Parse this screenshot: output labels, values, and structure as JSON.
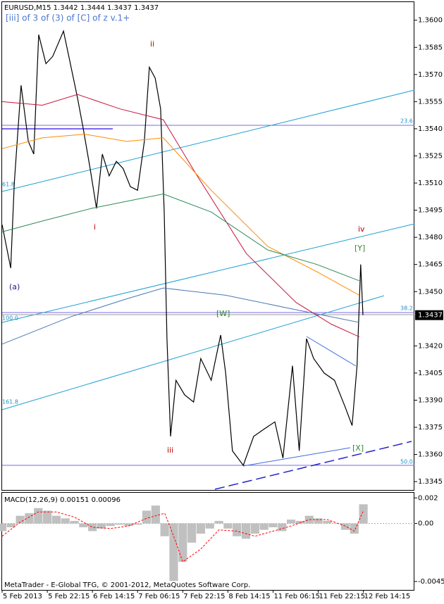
{
  "chart_data": [
    {
      "type": "line",
      "title": "EURUSD,M15  1.3442 1.3444 1.3437 1.3437",
      "subtitle": "[iii] of 3 of (3) of [C] of z v.1+",
      "current_price": 1.3437,
      "grid": false,
      "xlim": [
        0,
        9.13
      ],
      "ylim": [
        1.334,
        1.361
      ],
      "yticks": [
        {
          "value": 1.36,
          "label": "1.3600"
        },
        {
          "value": 1.3585,
          "label": "1.3585"
        },
        {
          "value": 1.357,
          "label": "1.3570"
        },
        {
          "value": 1.3555,
          "label": "1.3555"
        },
        {
          "value": 1.354,
          "label": "1.3540"
        },
        {
          "value": 1.3525,
          "label": "1.3525"
        },
        {
          "value": 1.351,
          "label": "1.3510"
        },
        {
          "value": 1.3495,
          "label": "1.3495"
        },
        {
          "value": 1.348,
          "label": "1.3480"
        },
        {
          "value": 1.3465,
          "label": "1.3465"
        },
        {
          "value": 1.345,
          "label": "1.3450"
        },
        {
          "value": 1.342,
          "label": "1.3420"
        },
        {
          "value": 1.3405,
          "label": "1.3405"
        },
        {
          "value": 1.339,
          "label": "1.3390"
        },
        {
          "value": 1.3375,
          "label": "1.3375"
        },
        {
          "value": 1.336,
          "label": "1.3360"
        },
        {
          "value": 1.3345,
          "label": "1.3345"
        }
      ],
      "annotations": [
        "ii",
        "i",
        "iii",
        "iv",
        "[Y]",
        "[W]",
        "[X]",
        "(a)",
        "23.6",
        "38.2",
        "50.0",
        "61.8",
        "100.0",
        "161.8"
      ],
      "series": [
        {
          "color": "#000000",
          "x": [
            0,
            0.19,
            0.27,
            0.42,
            0.58,
            0.7,
            0.81,
            0.97,
            1.12,
            1.36,
            1.51,
            1.67,
            1.79,
            1.95,
            2.09,
            2.22,
            2.37,
            2.53,
            2.68,
            2.84,
            3.0,
            3.15,
            3.26,
            3.39,
            3.51,
            3.59,
            3.65,
            3.73,
            3.85,
            4.04,
            4.24,
            4.4,
            4.63,
            4.84,
            4.95,
            5.1,
            5.34,
            5.57,
            5.8,
            6.04,
            6.22,
            6.43,
            6.58,
            6.74,
            6.9,
            7.13,
            7.36,
            7.6,
            7.75,
            7.86,
            7.94,
            7.99
          ],
          "values": [
            1.3487,
            1.3463,
            1.351,
            1.3564,
            1.3533,
            1.3526,
            1.3592,
            1.3576,
            1.358,
            1.3594,
            1.3576,
            1.3557,
            1.3541,
            1.3518,
            1.3496,
            1.3526,
            1.3514,
            1.3522,
            1.3518,
            1.3508,
            1.3506,
            1.3533,
            1.3574,
            1.3568,
            1.3551,
            1.3494,
            1.3424,
            1.337,
            1.3401,
            1.3393,
            1.3389,
            1.3413,
            1.3401,
            1.3426,
            1.3405,
            1.3362,
            1.3354,
            1.337,
            1.3374,
            1.3378,
            1.3358,
            1.3409,
            1.3362,
            1.3424,
            1.3413,
            1.3405,
            1.3401,
            1.3386,
            1.3376,
            1.3409,
            1.3465,
            1.3437
          ]
        },
        {
          "color": "#c8143c",
          "x": [
            0,
            0.89,
            1.67,
            2.61,
            3.57,
            4.32,
            5.41,
            6.51,
            7.29,
            7.91
          ],
          "values": [
            1.3555,
            1.3553,
            1.3559,
            1.3551,
            1.3545,
            1.3514,
            1.3471,
            1.3444,
            1.3432,
            1.3425
          ]
        },
        {
          "color": "#ff8c00",
          "x": [
            0,
            0.89,
            1.83,
            2.76,
            3.57,
            4.63,
            5.88,
            6.97,
            7.91
          ],
          "values": [
            1.3529,
            1.3535,
            1.3537,
            1.3533,
            1.3535,
            1.3506,
            1.3475,
            1.3461,
            1.3448
          ]
        },
        {
          "color": "#2e8b57",
          "x": [
            0,
            0.89,
            1.98,
            3.57,
            4.63,
            5.88,
            6.97,
            7.91
          ],
          "values": [
            1.3483,
            1.3489,
            1.3496,
            1.3504,
            1.3494,
            1.3473,
            1.3465,
            1.3456
          ]
        },
        {
          "color": "#4a78b0",
          "x": [
            0,
            1.51,
            2.76,
            3.57,
            4.95,
            6.51,
            7.91
          ],
          "values": [
            1.3421,
            1.3436,
            1.3446,
            1.3452,
            1.3448,
            1.344,
            1.3433
          ]
        }
      ]
    },
    {
      "type": "bar",
      "title": "MACD(12,26,9) 0.00151 0.00096",
      "footer": "MetaTrader - E-Global TFG, © 2001-2012, MetaQuotes Software Corp.",
      "xlim": [
        0,
        9.13
      ],
      "ylim": [
        -0.0052,
        0.0024
      ],
      "yticks": [
        0.002,
        {
          "value": 0,
          "label": "0.00"
        },
        -0.00454
      ],
      "xticks": [
        {
          "value": 0,
          "label": "5 Feb 2013"
        },
        {
          "value": 1,
          "label": "5 Feb 22:15"
        },
        {
          "value": 2,
          "label": "6 Feb 14:15"
        },
        {
          "value": 3,
          "label": "7 Feb 06:15"
        },
        {
          "value": 4,
          "label": "7 Feb 22:15"
        },
        {
          "value": 5,
          "label": "8 Feb 14:15"
        },
        {
          "value": 6,
          "label": "11 Feb 06:15"
        },
        {
          "value": 7,
          "label": "11 Feb 22:15"
        },
        {
          "value": 8,
          "label": "12 Feb 14:15"
        }
      ],
      "series": [
        {
          "color": "#c0c0c0",
          "x": [
            0,
            0.2,
            0.4,
            0.6,
            0.8,
            1.0,
            1.2,
            1.4,
            1.6,
            1.8,
            2.0,
            2.2,
            2.4,
            2.6,
            2.8,
            3.0,
            3.2,
            3.4,
            3.6,
            3.8,
            4.0,
            4.2,
            4.4,
            4.6,
            4.8,
            5.0,
            5.2,
            5.4,
            5.6,
            5.8,
            6.0,
            6.2,
            6.4,
            6.6,
            6.8,
            7.0,
            7.2,
            7.4,
            7.6,
            7.8,
            8.0
          ],
          "values": [
            -0.0006,
            -0.0003,
            0.0006,
            0.0008,
            0.0012,
            0.001,
            0.0006,
            0.0004,
            0.0002,
            -0.0003,
            -0.0006,
            -0.0004,
            -0.0002,
            -0.0001,
            -0.0002,
            -0.0001,
            0.001,
            0.0014,
            -0.001,
            -0.0045,
            -0.003,
            -0.0015,
            -0.0008,
            -0.0004,
            0.0002,
            -0.0004,
            -0.001,
            -0.0012,
            -0.0008,
            -0.0005,
            -0.0003,
            -0.0006,
            0.0003,
            0.0002,
            0.0006,
            0.0004,
            0.0002,
            0,
            -0.0005,
            -0.0008,
            0.0015
          ]
        },
        {
          "type": "line",
          "color": "#ff0000",
          "x": [
            0,
            0.4,
            0.8,
            1.2,
            1.6,
            2.0,
            2.4,
            2.8,
            3.2,
            3.6,
            3.8,
            4.0,
            4.4,
            4.8,
            5.2,
            5.6,
            6.0,
            6.4,
            6.8,
            7.2,
            7.6,
            7.8,
            8.0
          ],
          "values": [
            -0.001,
            0.0001,
            0.0009,
            0.0009,
            0.0005,
            -0.0003,
            -0.0004,
            -0.0002,
            0.0004,
            0.0008,
            -0.001,
            -0.003,
            -0.002,
            -0.0005,
            -0.0006,
            -0.001,
            -0.0006,
            -0.0002,
            0.0003,
            0.0003,
            -0.0002,
            -0.0006,
            0.001
          ]
        }
      ]
    }
  ]
}
